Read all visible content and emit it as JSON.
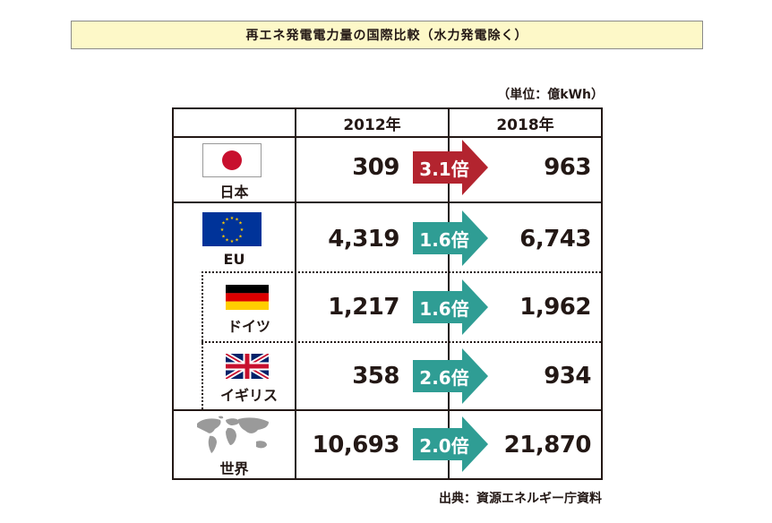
{
  "title": "再エネ発電電力量の国際比較（水力発電除く）",
  "unit": "（単位：億kWh）",
  "source": "出典：資源エネルギー庁資料",
  "colors": {
    "accent_red": "#b3242f",
    "accent_teal": "#2f9d94",
    "title_bg": "#fdf8c8"
  },
  "chart_data": {
    "type": "table",
    "title": "再エネ発電電力量の国際比較（水力発電除く）",
    "columns": [
      "2012年",
      "2018年"
    ],
    "unit": "億kWh",
    "rows": [
      {
        "label": "日本",
        "flag": "japan-flag-icon",
        "y2012": "309",
        "y2018": "963",
        "ratio": "3.1倍",
        "highlight": true
      },
      {
        "label": "EU",
        "flag": "eu-flag-icon",
        "y2012": "4,319",
        "y2018": "6,743",
        "ratio": "1.6倍",
        "highlight": false
      },
      {
        "label": "ドイツ",
        "flag": "germany-flag-icon",
        "y2012": "1,217",
        "y2018": "1,962",
        "ratio": "1.6倍",
        "highlight": false
      },
      {
        "label": "イギリス",
        "flag": "uk-flag-icon",
        "y2012": "358",
        "y2018": "934",
        "ratio": "2.6倍",
        "highlight": false
      },
      {
        "label": "世界",
        "flag": "world-map-icon",
        "y2012": "10,693",
        "y2018": "21,870",
        "ratio": "2.0倍",
        "highlight": false
      }
    ]
  }
}
